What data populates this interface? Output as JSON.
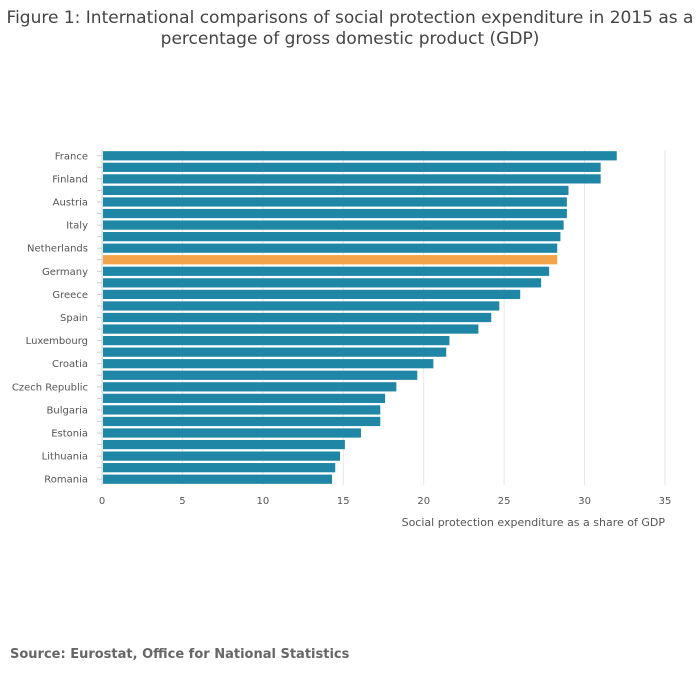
{
  "title": "Figure 1: International comparisons of social protection expenditure in 2015 as a percentage of gross domestic product (GDP)",
  "source": "Source: Eurostat, Office for National Statistics",
  "colors": {
    "bar": "#1f87a5",
    "highlight": "#f3a44a",
    "grid": "#e6e6e6"
  },
  "chart_data": {
    "type": "bar",
    "orientation": "horizontal",
    "title": "Figure 1: International comparisons of social protection expenditure in 2015 as a percentage of gross domestic product (GDP)",
    "xlabel": "Social protection expenditure as a share of GDP",
    "ylabel": "",
    "xlim": [
      0,
      35
    ],
    "xticks": [
      0,
      5,
      10,
      15,
      20,
      25,
      30,
      35
    ],
    "grid": true,
    "highlight_index": 9,
    "categories": [
      "France",
      "",
      "Finland",
      "",
      "Austria",
      "",
      "Italy",
      "",
      "Netherlands",
      "",
      "Germany",
      "",
      "Greece",
      "",
      "Spain",
      "",
      "Luxembourg",
      "",
      "Croatia",
      "",
      "Czech Republic",
      "",
      "Bulgaria",
      "",
      "Estonia",
      "",
      "Lithuania",
      "",
      "Romania"
    ],
    "values": [
      32.0,
      31.0,
      31.0,
      29.0,
      28.9,
      28.9,
      28.7,
      28.5,
      28.3,
      28.3,
      27.8,
      27.3,
      26.0,
      24.7,
      24.2,
      23.4,
      21.6,
      21.4,
      20.6,
      19.6,
      18.3,
      17.6,
      17.3,
      17.3,
      16.1,
      15.1,
      14.8,
      14.5,
      14.3
    ]
  }
}
